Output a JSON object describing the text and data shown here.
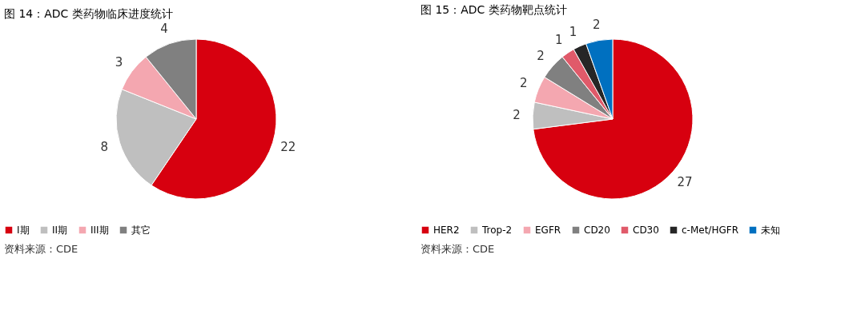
{
  "chart_data": [
    {
      "type": "pie",
      "title": "图 14：ADC 类药物临床进度统计",
      "categories": [
        "I期",
        "II期",
        "III期",
        "其它"
      ],
      "values": [
        22,
        8,
        3,
        4
      ],
      "colors": [
        "#d7000f",
        "#bfbfbf",
        "#f4a7b0",
        "#808080"
      ],
      "legend": "bottom",
      "data_labels": true,
      "annotations": [
        "资料来源：CDE"
      ]
    },
    {
      "type": "pie",
      "title": "图 15：ADC 类药物靶点统计",
      "categories": [
        "HER2",
        "Trop-2",
        "EGFR",
        "CD20",
        "CD30",
        "c-Met/HGFR",
        "未知"
      ],
      "values": [
        27,
        2,
        2,
        2,
        1,
        1,
        2
      ],
      "colors": [
        "#d7000f",
        "#bfbfbf",
        "#f4a7b0",
        "#808080",
        "#e05a6a",
        "#262626",
        "#0070c0"
      ],
      "legend": "bottom",
      "data_labels": true,
      "annotations": [
        "资料来源：CDE"
      ]
    }
  ]
}
